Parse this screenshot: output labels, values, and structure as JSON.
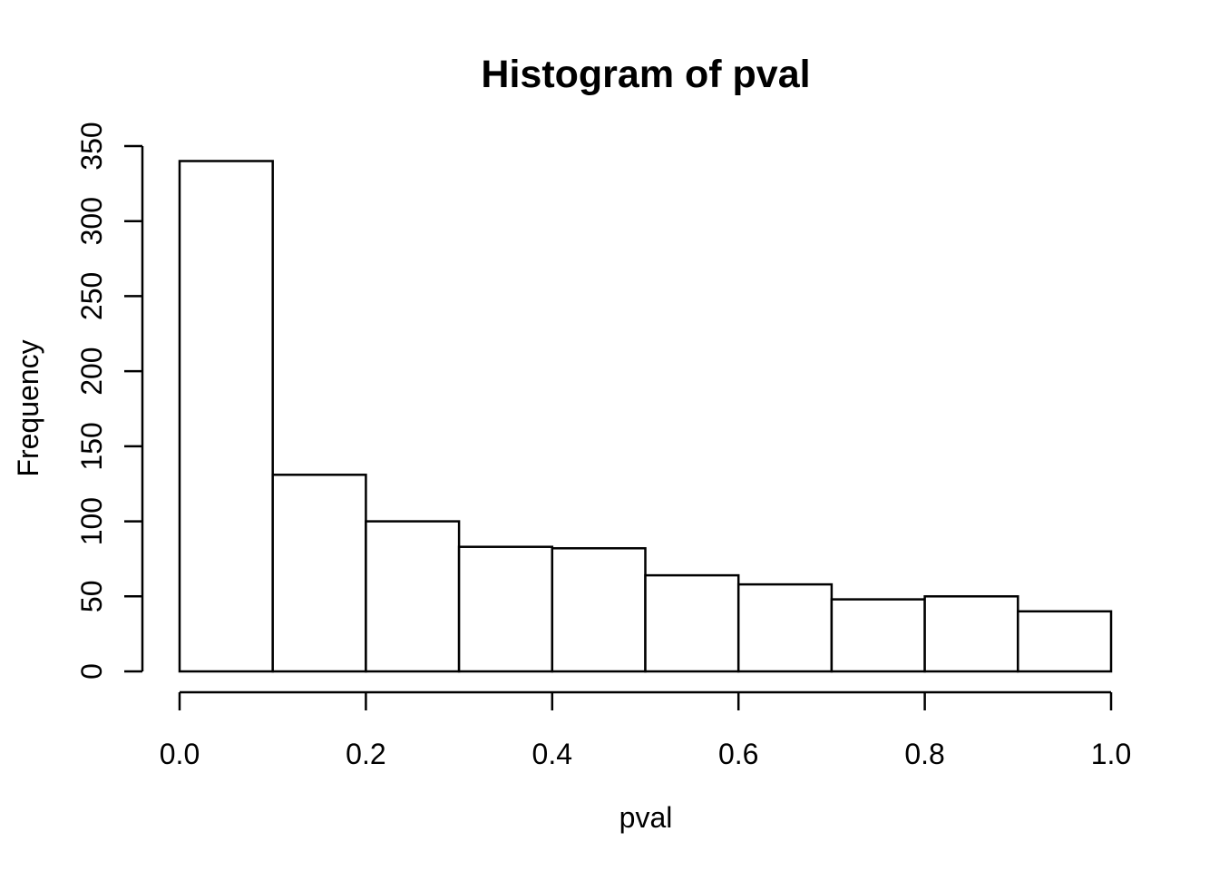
{
  "chart_data": {
    "type": "bar",
    "subtype": "histogram",
    "title": "Histogram of pval",
    "xlabel": "pval",
    "ylabel": "Frequency",
    "bin_edges": [
      0.0,
      0.1,
      0.2,
      0.3,
      0.4,
      0.5,
      0.6,
      0.7,
      0.8,
      0.9,
      1.0
    ],
    "values": [
      340,
      131,
      100,
      83,
      82,
      64,
      58,
      48,
      50,
      40
    ],
    "x_tick_values": [
      0.0,
      0.2,
      0.4,
      0.6,
      0.8,
      1.0
    ],
    "x_tick_labels": [
      "0.0",
      "0.2",
      "0.4",
      "0.6",
      "0.8",
      "1.0"
    ],
    "y_tick_values": [
      0,
      50,
      100,
      150,
      200,
      250,
      300,
      350
    ],
    "y_tick_labels": [
      "0",
      "50",
      "100",
      "150",
      "200",
      "250",
      "300",
      "350"
    ],
    "xlim": [
      0.0,
      1.0
    ],
    "ylim": [
      0,
      350
    ],
    "grid": false,
    "legend": null,
    "bar_fill": "#ffffff",
    "bar_stroke": "#000000",
    "axis_color": "#000000",
    "text_color": "#000000",
    "background": "#ffffff"
  }
}
